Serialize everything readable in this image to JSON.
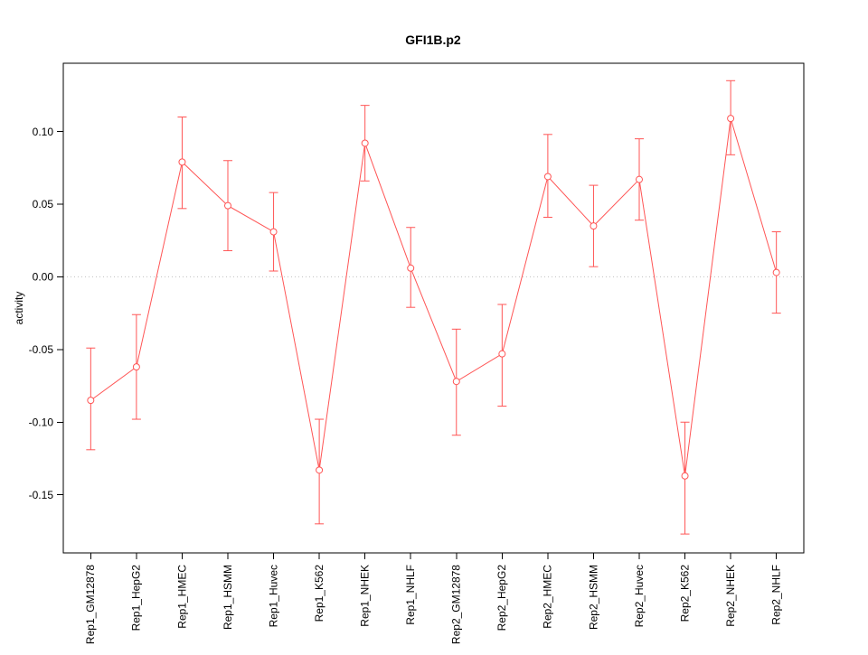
{
  "page": {
    "background": "#ffffff"
  },
  "chart_data": {
    "type": "line",
    "title": "GFI1B.p2",
    "xlabel": "",
    "ylabel": "activity",
    "categories": [
      "Rep1_GM12878",
      "Rep1_HepG2",
      "Rep1_HMEC",
      "Rep1_HSMM",
      "Rep1_Huvec",
      "Rep1_K562",
      "Rep1_NHEK",
      "Rep1_NHLF",
      "Rep2_GM12878",
      "Rep2_HepG2",
      "Rep2_HMEC",
      "Rep2_HSMM",
      "Rep2_Huvec",
      "Rep2_K562",
      "Rep2_NHEK",
      "Rep2_NHLF"
    ],
    "series": [
      {
        "name": "activity",
        "values": [
          -0.085,
          -0.062,
          0.079,
          0.049,
          0.031,
          -0.133,
          0.092,
          0.006,
          -0.072,
          -0.053,
          0.069,
          0.035,
          0.067,
          -0.137,
          0.109,
          0.003
        ],
        "error_low": [
          -0.119,
          -0.098,
          0.047,
          0.018,
          0.004,
          -0.17,
          0.066,
          -0.021,
          -0.109,
          -0.089,
          0.041,
          0.007,
          0.039,
          -0.177,
          0.084,
          -0.025
        ],
        "error_high": [
          -0.049,
          -0.026,
          0.11,
          0.08,
          0.058,
          -0.098,
          0.118,
          0.034,
          -0.036,
          -0.019,
          0.098,
          0.063,
          0.095,
          -0.1,
          0.135,
          0.031
        ]
      }
    ],
    "ylim": [
      -0.19,
      0.147
    ],
    "yticks": [
      -0.15,
      -0.1,
      -0.05,
      0,
      0.05,
      0.1
    ],
    "ytick_labels": [
      "-0.15",
      "-0.10",
      "-0.05",
      "0.00",
      "0.05",
      "0.10"
    ],
    "grid": false,
    "zero_line": true,
    "legend_position": "none",
    "colors": {
      "series": "#ff5555",
      "zero_line": "#c0c0c0",
      "axis": "#000000",
      "text": "#000000"
    }
  }
}
